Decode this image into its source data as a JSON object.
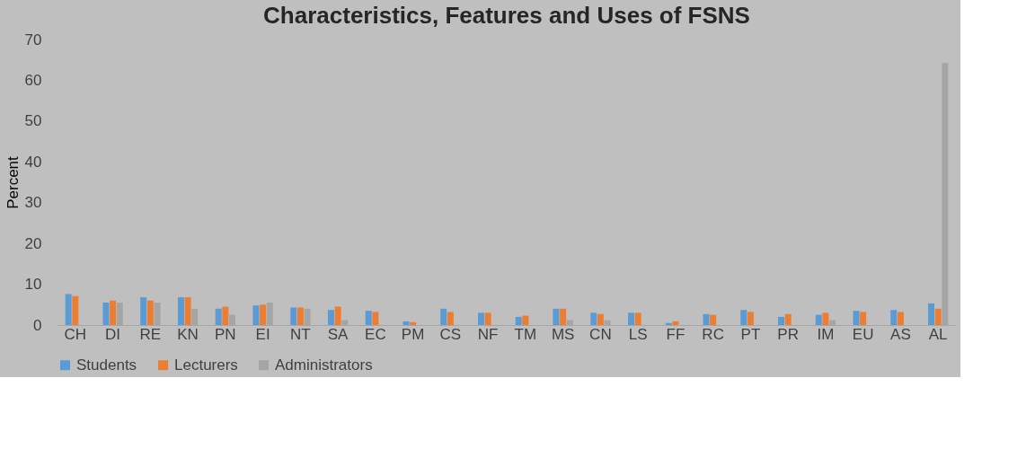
{
  "chart_data": {
    "type": "bar",
    "title": "Characteristics, Features and Uses of FSNS",
    "ylabel": "Percent",
    "categories": [
      "CH",
      "DI",
      "RE",
      "KN",
      "PN",
      "EI",
      "NT",
      "SA",
      "EC",
      "PM",
      "CS",
      "NF",
      "TM",
      "MS",
      "CN",
      "LS",
      "FF",
      "RC",
      "PT",
      "PR",
      "IM",
      "EU",
      "AS",
      "AL"
    ],
    "series": [
      {
        "name": "Students",
        "color": "#5b9bd5",
        "values": [
          7.6,
          5.5,
          6.8,
          6.8,
          4.0,
          4.8,
          4.3,
          3.7,
          3.5,
          0.9,
          4.0,
          3.0,
          2.0,
          4.0,
          3.0,
          3.0,
          0.5,
          2.7,
          3.7,
          2.0,
          2.5,
          3.5,
          3.7,
          5.3
        ]
      },
      {
        "name": "Lecturers",
        "color": "#ed7d31",
        "values": [
          7.1,
          6.0,
          6.0,
          6.8,
          4.5,
          5.0,
          4.3,
          4.5,
          3.2,
          0.7,
          3.2,
          3.0,
          2.3,
          4.0,
          2.7,
          3.0,
          0.9,
          2.5,
          3.2,
          2.7,
          3.0,
          3.2,
          3.2,
          4.0
        ]
      },
      {
        "name": "Administrators",
        "color": "#a5a5a5",
        "values": [
          null,
          5.5,
          5.5,
          4.0,
          2.5,
          5.5,
          4.0,
          1.2,
          null,
          null,
          null,
          null,
          null,
          1.2,
          1.2,
          null,
          null,
          null,
          null,
          null,
          1.2,
          null,
          null,
          64.2
        ]
      }
    ],
    "ylim": [
      0,
      70
    ],
    "yticks": [
      0,
      10,
      20,
      30,
      40,
      50,
      60,
      70
    ],
    "grid": false,
    "legend": "bottom"
  }
}
